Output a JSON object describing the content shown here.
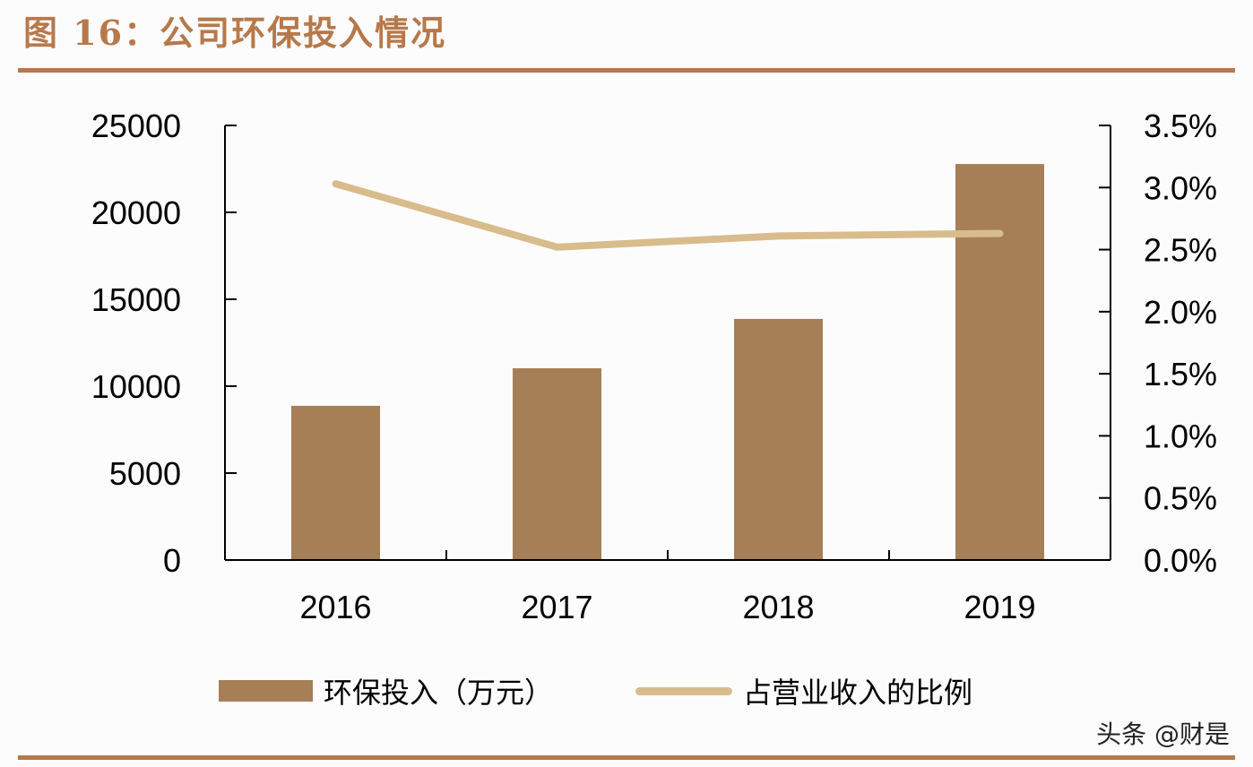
{
  "header": {
    "title": "图 16：公司环保投入情况"
  },
  "legend": {
    "bar_label": "环保投入（万元）",
    "line_label": "占营业收入的比例"
  },
  "watermark": "头条 @财是",
  "colors": {
    "accent": "#b7794a",
    "bar": "#a67f57",
    "line": "#d8bc8c",
    "axis": "#000000"
  },
  "chart_data": {
    "type": "bar+line",
    "title": "图 16：公司环保投入情况",
    "categories": [
      "2016",
      "2017",
      "2018",
      "2019"
    ],
    "series": [
      {
        "name": "环保投入（万元）",
        "type": "bar",
        "axis": "left",
        "values": [
          8870,
          11030,
          13870,
          22780
        ]
      },
      {
        "name": "占营业收入的比例",
        "type": "line",
        "axis": "right",
        "values": [
          3.03,
          2.52,
          2.61,
          2.63
        ],
        "unit": "%"
      }
    ],
    "left_axis": {
      "min": 0,
      "max": 25000,
      "ticks": [
        "0",
        "5000",
        "10000",
        "15000",
        "20000",
        "25000"
      ]
    },
    "right_axis": {
      "min": 0,
      "max": 3.5,
      "ticks": [
        "0.0%",
        "0.5%",
        "1.0%",
        "1.5%",
        "2.0%",
        "2.5%",
        "3.0%",
        "3.5%"
      ]
    },
    "xlabel": "",
    "ylabel": "",
    "grid": false,
    "legend_position": "bottom"
  }
}
